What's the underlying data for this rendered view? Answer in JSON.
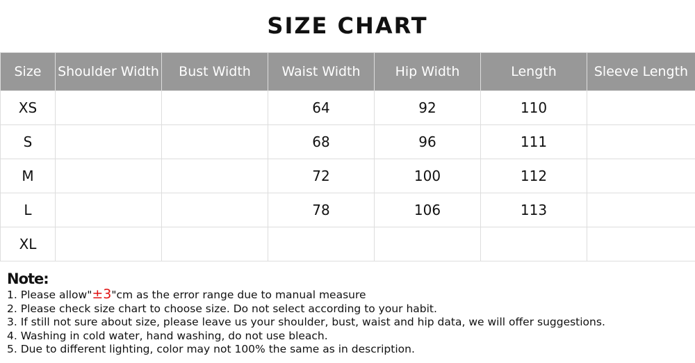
{
  "title": "SIZE CHART",
  "table": {
    "headers": [
      "Size",
      "Shoulder Width",
      "Bust Width",
      "Waist Width",
      "Hip Width",
      "Length",
      "Sleeve Length"
    ],
    "rows": [
      [
        "XS",
        "",
        "",
        "64",
        "92",
        "110",
        ""
      ],
      [
        "S",
        "",
        "",
        "68",
        "96",
        "111",
        ""
      ],
      [
        "M",
        "",
        "",
        "72",
        "100",
        "112",
        ""
      ],
      [
        "L",
        "",
        "",
        "78",
        "106",
        "113",
        ""
      ],
      [
        "XL",
        "",
        "",
        "",
        "",
        "",
        ""
      ]
    ]
  },
  "notes": {
    "title": "Note:",
    "line1_pre": "1. Please allow\"",
    "line1_red": "±3",
    "line1_post": "\"cm as the error range due to manual measure",
    "items": [
      "2. Please check size chart to choose size. Do not select according to your habit.",
      "3. If still not sure about size, please leave us your shoulder, bust, waist and hip data, we will offer suggestions.",
      "4. Washing in cold water, hand washing, do not use bleach.",
      "5. Due to different lighting, color may not 100% the same as in description."
    ]
  },
  "colors": {
    "header_bg": "#989898",
    "highlight": "#e01010"
  }
}
